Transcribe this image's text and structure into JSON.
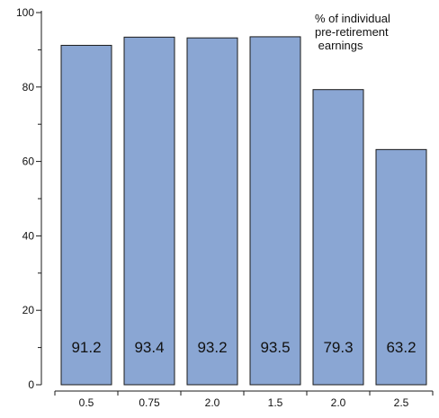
{
  "chart_data": {
    "type": "bar",
    "categories": [
      "0.5",
      "0.75",
      "2.0",
      "1.5",
      "2.0",
      "2.5"
    ],
    "values": [
      91.2,
      93.4,
      93.2,
      93.5,
      79.3,
      63.2
    ],
    "value_labels": [
      "91.2",
      "93.4",
      "93.2",
      "93.5",
      "79.3",
      "63.2"
    ],
    "y_ticks": [
      "0",
      "20",
      "40",
      "60",
      "80",
      "100"
    ],
    "ylim": [
      0,
      100
    ],
    "annotation_lines": [
      "% of individual",
      "pre-retirement",
      " earnings"
    ],
    "bar_color": "#8aa6d3",
    "grid": false,
    "legend": "none"
  }
}
